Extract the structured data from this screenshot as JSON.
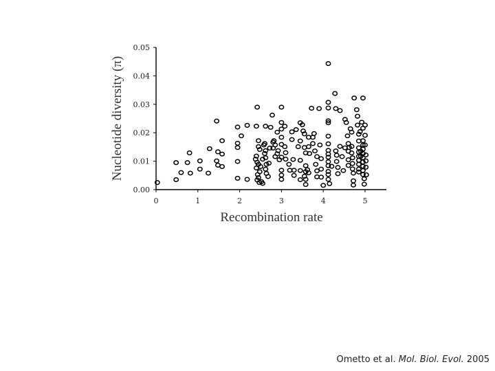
{
  "citation": {
    "authors": "Ometto et al.",
    "journal": "Mol. Biol. Evol.",
    "year": "2005"
  },
  "chart_data": {
    "type": "scatter",
    "xlabel": "Recombination rate",
    "ylabel": "Nucleotide diversity (π)",
    "xlim": [
      0,
      5.5
    ],
    "ylim": [
      0,
      0.05
    ],
    "xticks": [
      0,
      1,
      2,
      3,
      4,
      5
    ],
    "xtick_labels": [
      "0",
      "1",
      "2",
      "3",
      "4",
      "5"
    ],
    "yticks": [
      0,
      0.01,
      0.02,
      0.03,
      0.04,
      0.05
    ],
    "ytick_labels": [
      "0.00",
      "0.01",
      "0.02",
      "0.03",
      "0.04",
      "0.05"
    ],
    "grid": false,
    "marker": "open-circle",
    "color": "#000000",
    "points": [
      [
        0.03,
        0.0025
      ],
      [
        0.48,
        0.0095
      ],
      [
        0.48,
        0.0035
      ],
      [
        0.6,
        0.006
      ],
      [
        0.75,
        0.0095
      ],
      [
        0.8,
        0.0129
      ],
      [
        0.82,
        0.0058
      ],
      [
        1.05,
        0.0072
      ],
      [
        1.05,
        0.0101
      ],
      [
        1.25,
        0.0058
      ],
      [
        1.28,
        0.0144
      ],
      [
        1.45,
        0.0241
      ],
      [
        1.45,
        0.0101
      ],
      [
        1.48,
        0.0086
      ],
      [
        1.48,
        0.0133
      ],
      [
        1.58,
        0.0172
      ],
      [
        1.58,
        0.0125
      ],
      [
        1.58,
        0.0081
      ],
      [
        1.95,
        0.022
      ],
      [
        1.95,
        0.0163
      ],
      [
        1.95,
        0.0148
      ],
      [
        1.95,
        0.0099
      ],
      [
        1.95,
        0.004
      ],
      [
        2.04,
        0.0189
      ],
      [
        2.18,
        0.0226
      ],
      [
        2.18,
        0.0036
      ],
      [
        2.4,
        0.0223
      ],
      [
        2.42,
        0.029
      ],
      [
        2.45,
        0.0172
      ],
      [
        2.45,
        0.0151
      ],
      [
        2.48,
        0.0141
      ],
      [
        2.4,
        0.0118
      ],
      [
        2.38,
        0.0107
      ],
      [
        2.42,
        0.0096
      ],
      [
        2.45,
        0.0089
      ],
      [
        2.4,
        0.0076
      ],
      [
        2.48,
        0.0063
      ],
      [
        2.43,
        0.0053
      ],
      [
        2.45,
        0.0042
      ],
      [
        2.42,
        0.0034
      ],
      [
        2.47,
        0.0025
      ],
      [
        2.52,
        0.0028
      ],
      [
        2.55,
        0.0022
      ],
      [
        2.5,
        0.0081
      ],
      [
        2.55,
        0.0107
      ],
      [
        2.58,
        0.0157
      ],
      [
        2.62,
        0.0223
      ],
      [
        2.6,
        0.0162
      ],
      [
        2.62,
        0.0137
      ],
      [
        2.6,
        0.0127
      ],
      [
        2.62,
        0.0112
      ],
      [
        2.64,
        0.0089
      ],
      [
        2.62,
        0.0072
      ],
      [
        2.64,
        0.0057
      ],
      [
        2.68,
        0.0046
      ],
      [
        2.7,
        0.0093
      ],
      [
        2.72,
        0.0146
      ],
      [
        2.74,
        0.0219
      ],
      [
        2.78,
        0.0262
      ],
      [
        2.8,
        0.0146
      ],
      [
        2.8,
        0.0167
      ],
      [
        2.82,
        0.0172
      ],
      [
        2.85,
        0.0116
      ],
      [
        2.85,
        0.0157
      ],
      [
        2.9,
        0.0202
      ],
      [
        2.9,
        0.0126
      ],
      [
        2.92,
        0.0137
      ],
      [
        2.95,
        0.0105
      ],
      [
        3.0,
        0.029
      ],
      [
        3.0,
        0.0236
      ],
      [
        3.0,
        0.0213
      ],
      [
        3.0,
        0.0184
      ],
      [
        3.0,
        0.0159
      ],
      [
        3.0,
        0.0114
      ],
      [
        3.0,
        0.0068
      ],
      [
        3.0,
        0.0051
      ],
      [
        3.0,
        0.0036
      ],
      [
        3.08,
        0.0223
      ],
      [
        3.08,
        0.0151
      ],
      [
        3.1,
        0.013
      ],
      [
        3.1,
        0.0107
      ],
      [
        3.18,
        0.0089
      ],
      [
        3.2,
        0.0068
      ],
      [
        3.25,
        0.0203
      ],
      [
        3.25,
        0.0176
      ],
      [
        3.28,
        0.0106
      ],
      [
        3.3,
        0.0068
      ],
      [
        3.3,
        0.005
      ],
      [
        3.35,
        0.0211
      ],
      [
        3.4,
        0.0151
      ],
      [
        3.45,
        0.0235
      ],
      [
        3.45,
        0.0171
      ],
      [
        3.45,
        0.0103
      ],
      [
        3.45,
        0.0067
      ],
      [
        3.45,
        0.0035
      ],
      [
        3.5,
        0.0228
      ],
      [
        3.52,
        0.0206
      ],
      [
        3.55,
        0.0196
      ],
      [
        3.55,
        0.0148
      ],
      [
        3.58,
        0.0129
      ],
      [
        3.58,
        0.0084
      ],
      [
        3.58,
        0.0063
      ],
      [
        3.55,
        0.0047
      ],
      [
        3.58,
        0.0036
      ],
      [
        3.58,
        0.0018
      ],
      [
        3.65,
        0.0184
      ],
      [
        3.65,
        0.0151
      ],
      [
        3.67,
        0.0127
      ],
      [
        3.62,
        0.007
      ],
      [
        3.65,
        0.0059
      ],
      [
        3.72,
        0.0286
      ],
      [
        3.75,
        0.0184
      ],
      [
        3.75,
        0.0162
      ],
      [
        3.78,
        0.0197
      ],
      [
        3.8,
        0.0136
      ],
      [
        3.82,
        0.0089
      ],
      [
        3.85,
        0.0116
      ],
      [
        3.85,
        0.0066
      ],
      [
        3.85,
        0.0045
      ],
      [
        3.9,
        0.0285
      ],
      [
        3.92,
        0.0157
      ],
      [
        3.95,
        0.0109
      ],
      [
        3.95,
        0.0072
      ],
      [
        3.95,
        0.0044
      ],
      [
        4.0,
        0.0015
      ],
      [
        4.12,
        0.0443
      ],
      [
        4.12,
        0.0307
      ],
      [
        4.12,
        0.0287
      ],
      [
        4.12,
        0.0242
      ],
      [
        4.12,
        0.0235
      ],
      [
        4.12,
        0.0188
      ],
      [
        4.12,
        0.0161
      ],
      [
        4.12,
        0.0138
      ],
      [
        4.12,
        0.0125
      ],
      [
        4.12,
        0.0114
      ],
      [
        4.12,
        0.0098
      ],
      [
        4.12,
        0.0084
      ],
      [
        4.12,
        0.0064
      ],
      [
        4.12,
        0.0053
      ],
      [
        4.12,
        0.0036
      ],
      [
        4.15,
        0.0021
      ],
      [
        4.2,
        0.0082
      ],
      [
        4.28,
        0.0338
      ],
      [
        4.3,
        0.0285
      ],
      [
        4.3,
        0.0136
      ],
      [
        4.32,
        0.0121
      ],
      [
        4.32,
        0.0099
      ],
      [
        4.35,
        0.0078
      ],
      [
        4.35,
        0.0056
      ],
      [
        4.4,
        0.0278
      ],
      [
        4.4,
        0.0152
      ],
      [
        4.45,
        0.0116
      ],
      [
        4.48,
        0.0067
      ],
      [
        4.52,
        0.0247
      ],
      [
        4.52,
        0.0147
      ],
      [
        4.55,
        0.0236
      ],
      [
        4.58,
        0.0189
      ],
      [
        4.6,
        0.0162
      ],
      [
        4.6,
        0.0135
      ],
      [
        4.6,
        0.0105
      ],
      [
        4.6,
        0.0085
      ],
      [
        4.62,
        0.0148
      ],
      [
        4.65,
        0.0214
      ],
      [
        4.68,
        0.0202
      ],
      [
        4.68,
        0.0152
      ],
      [
        4.68,
        0.0129
      ],
      [
        4.7,
        0.0112
      ],
      [
        4.7,
        0.0092
      ],
      [
        4.7,
        0.0073
      ],
      [
        4.72,
        0.0058
      ],
      [
        4.72,
        0.0031
      ],
      [
        4.72,
        0.0016
      ],
      [
        4.74,
        0.0322
      ],
      [
        4.8,
        0.0281
      ],
      [
        4.82,
        0.0258
      ],
      [
        4.82,
        0.0227
      ],
      [
        4.85,
        0.0195
      ],
      [
        4.85,
        0.0171
      ],
      [
        4.85,
        0.0147
      ],
      [
        4.85,
        0.0132
      ],
      [
        4.85,
        0.0117
      ],
      [
        4.85,
        0.0103
      ],
      [
        4.85,
        0.0089
      ],
      [
        4.85,
        0.0072
      ],
      [
        4.85,
        0.0062
      ],
      [
        4.88,
        0.0204
      ],
      [
        4.9,
        0.0135
      ],
      [
        4.9,
        0.0118
      ],
      [
        4.92,
        0.0237
      ],
      [
        4.95,
        0.0322
      ],
      [
        4.95,
        0.0216
      ],
      [
        4.95,
        0.0172
      ],
      [
        4.95,
        0.0157
      ],
      [
        4.95,
        0.0142
      ],
      [
        4.95,
        0.0127
      ],
      [
        4.95,
        0.0112
      ],
      [
        4.95,
        0.0097
      ],
      [
        4.95,
        0.0082
      ],
      [
        4.95,
        0.0067
      ],
      [
        4.95,
        0.0053
      ],
      [
        4.98,
        0.0038
      ],
      [
        4.98,
        0.0019
      ],
      [
        5.0,
        0.0227
      ],
      [
        5.0,
        0.0191
      ],
      [
        5.0,
        0.0157
      ],
      [
        5.02,
        0.0122
      ],
      [
        5.02,
        0.0101
      ],
      [
        5.02,
        0.0079
      ],
      [
        5.03,
        0.0052
      ]
    ]
  }
}
